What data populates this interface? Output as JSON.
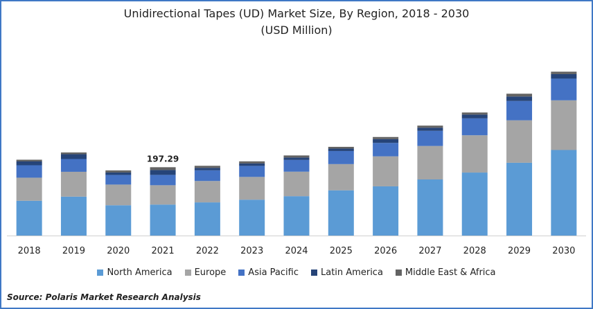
{
  "title_line1": "Unidirectional Tapes (UD) Market Size, By Region, 2018 - 2030",
  "title_line2": "(USD Million)",
  "source": "Source: Polaris  Market Research Analysis",
  "colors": {
    "North America": "#5b9bd5",
    "Europe": "#a5a5a5",
    "Asia Pacific": "#4472c4",
    "Latin America": "#264478",
    "Middle East & Africa": "#636363"
  },
  "chart_data": {
    "type": "bar",
    "stacked": true,
    "title": "Unidirectional Tapes (UD) Market Size, By Region, 2018 - 2030 (USD Million)",
    "categories": [
      "2018",
      "2019",
      "2020",
      "2021",
      "2022",
      "2023",
      "2024",
      "2025",
      "2026",
      "2027",
      "2028",
      "2029",
      "2030"
    ],
    "series": [
      {
        "name": "North America",
        "values": [
          100.5,
          112.4,
          87.5,
          89.5,
          95.8,
          103.6,
          113.7,
          130.6,
          142.1,
          162.0,
          181.9,
          210.2,
          247.0
        ]
      },
      {
        "name": "Europe",
        "values": [
          66.6,
          71.7,
          59.7,
          55.8,
          61.7,
          65.7,
          70.7,
          75.7,
          86.6,
          96.6,
          107.6,
          122.5,
          143.4
        ]
      },
      {
        "name": "Asia Pacific",
        "values": [
          35.9,
          36.9,
          27.9,
          29.9,
          30.9,
          31.9,
          33.9,
          37.8,
          38.8,
          43.8,
          48.8,
          55.8,
          62.7
        ]
      },
      {
        "name": "Latin America",
        "values": [
          11.0,
          13.9,
          7.0,
          14.0,
          7.0,
          7.0,
          7.0,
          7.0,
          11.0,
          9.0,
          11.0,
          13.0,
          13.0
        ]
      },
      {
        "name": "Middle East & Africa",
        "values": [
          5.0,
          5.0,
          6.0,
          8.1,
          6.0,
          6.0,
          6.0,
          5.0,
          6.0,
          6.0,
          6.0,
          8.0,
          7.0
        ]
      }
    ],
    "annotations": [
      {
        "category": "2021",
        "text": "197.29"
      }
    ],
    "ylim": [
      0,
      500
    ],
    "legend": "bottom",
    "grid": false
  }
}
